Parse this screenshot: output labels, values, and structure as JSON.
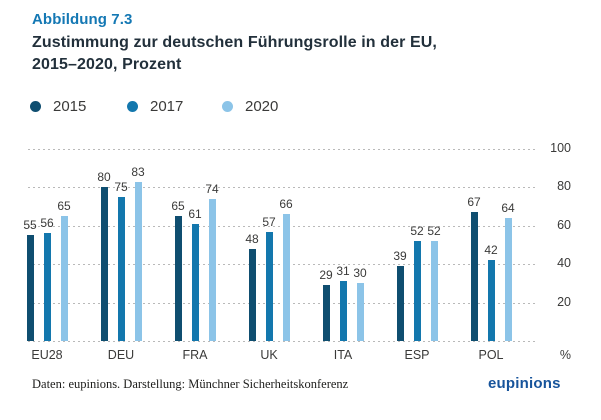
{
  "figure": {
    "label": "Abbildung 7.3",
    "title_line1": "Zustimmung zur deutschen Führungsrolle in der EU,",
    "title_line2": "2015–2020, Prozent"
  },
  "footer": {
    "source": "Daten: eupinions. Darstellung: Münchner Sicherheitskonferenz",
    "logo": "eupinions"
  },
  "chart_data": {
    "type": "bar",
    "title": "Zustimmung zur deutschen Führungsrolle in der EU, 2015–2020, Prozent",
    "categories": [
      "EU28",
      "DEU",
      "FRA",
      "UK",
      "ITA",
      "ESP",
      "POL"
    ],
    "series": [
      {
        "name": "2015",
        "color": "#0f4e70",
        "values": [
          55,
          80,
          65,
          48,
          29,
          39,
          67
        ]
      },
      {
        "name": "2017",
        "color": "#1377ad",
        "values": [
          56,
          75,
          61,
          57,
          31,
          52,
          42
        ]
      },
      {
        "name": "2020",
        "color": "#8cc4e8",
        "values": [
          65,
          83,
          74,
          66,
          30,
          52,
          64
        ]
      }
    ],
    "xlabel": "",
    "ylabel": "",
    "y_axis_unit": "%",
    "ylim": [
      0,
      100
    ],
    "yticks": [
      20,
      40,
      60,
      80,
      100
    ],
    "grid": "dotted-horizontal",
    "legend_position": "top",
    "value_labels": true,
    "grid_color": "#b9b9b9",
    "label_color": "#3a3a39"
  }
}
